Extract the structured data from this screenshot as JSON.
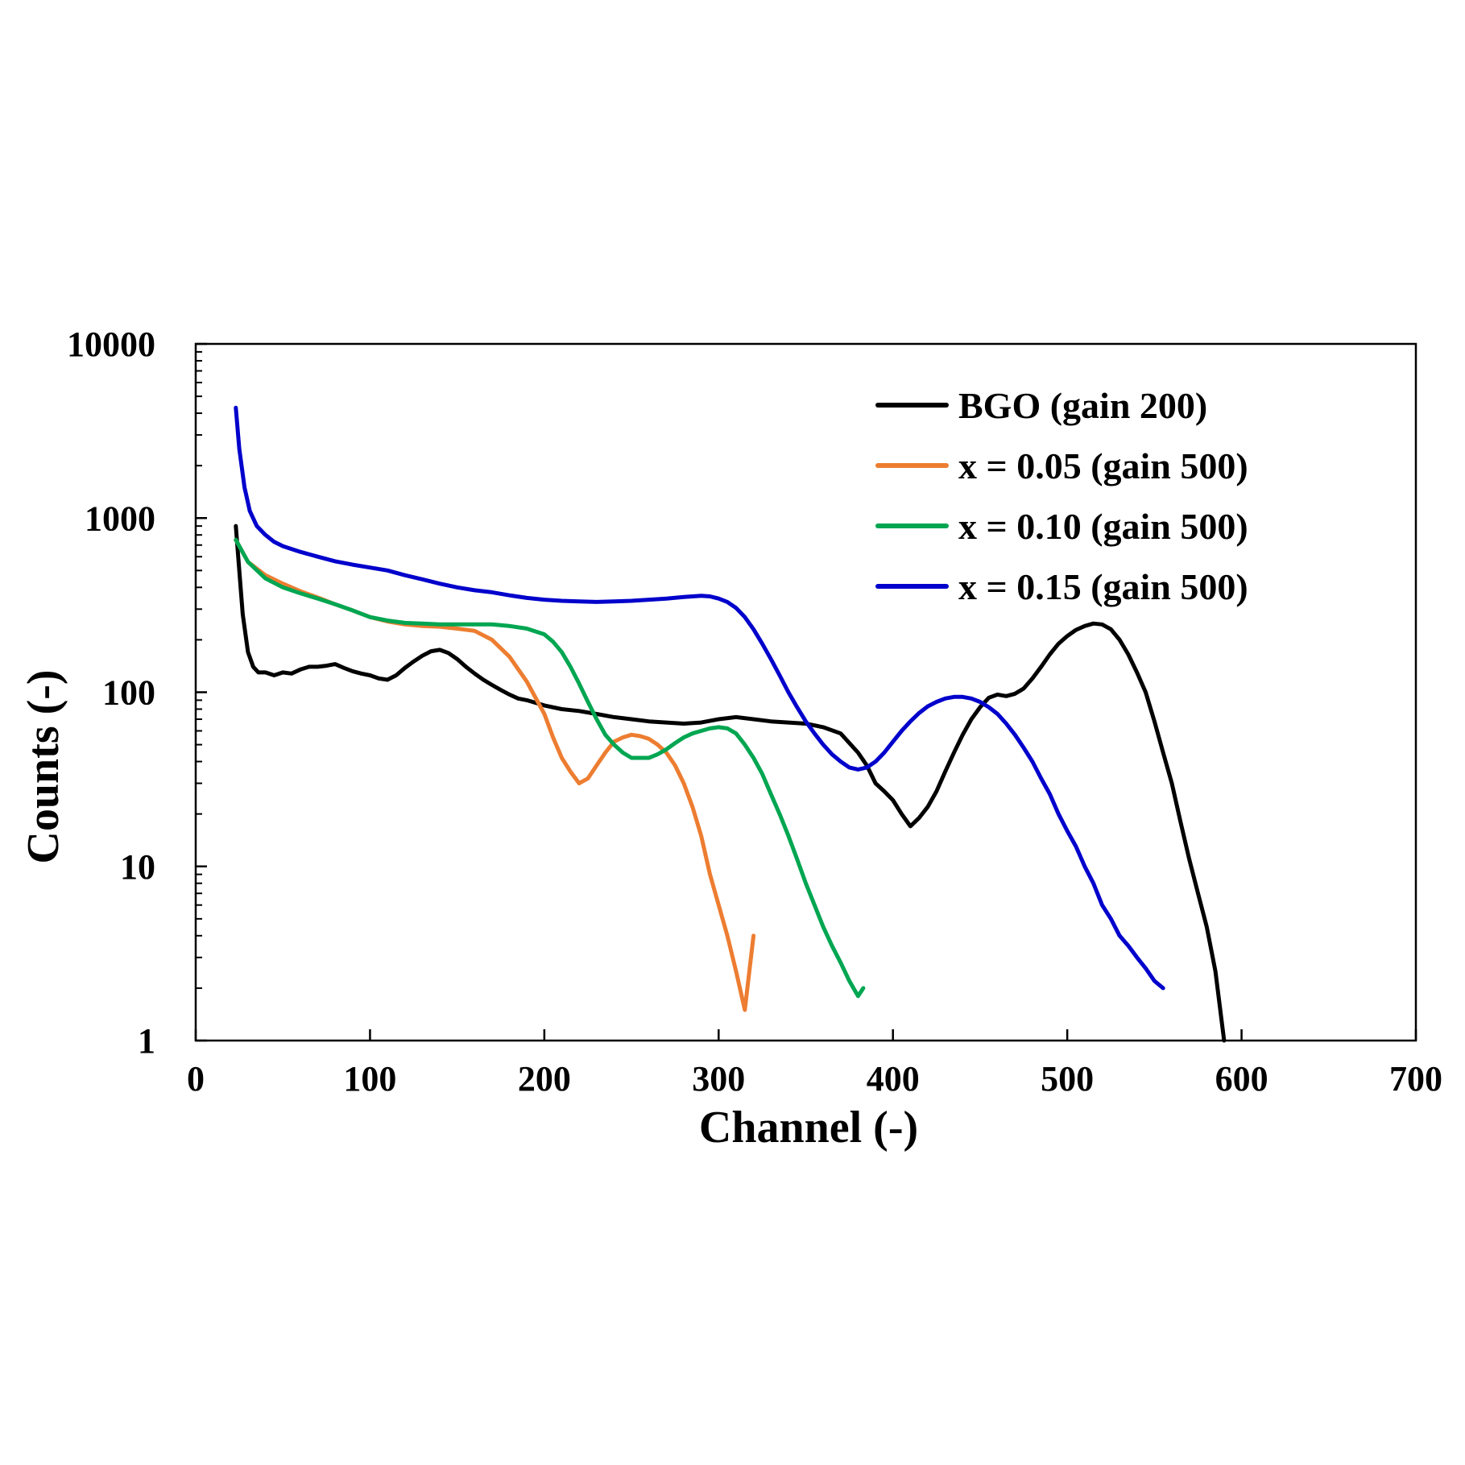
{
  "chart_data": {
    "type": "line",
    "title": "",
    "xlabel": "Channel (-)",
    "ylabel": "Counts (-)",
    "xlim": [
      0,
      700
    ],
    "ylim": [
      1,
      10000
    ],
    "yscale": "log",
    "x_ticks": [
      0,
      100,
      200,
      300,
      400,
      500,
      600,
      700
    ],
    "x_tick_labels": [
      "0",
      "100",
      "200",
      "300",
      "400",
      "500",
      "600",
      "700"
    ],
    "y_ticks": [
      1,
      10,
      100,
      1000,
      10000
    ],
    "y_tick_labels": [
      "1",
      "10",
      "100",
      "1000",
      "10000"
    ],
    "grid": false,
    "legend_position": "top-right",
    "series": [
      {
        "name": "BGO (gain 200)",
        "color": "#000000",
        "x": [
          23,
          25,
          27,
          30,
          33,
          36,
          40,
          45,
          50,
          55,
          60,
          65,
          70,
          75,
          80,
          85,
          90,
          95,
          100,
          105,
          110,
          115,
          120,
          125,
          130,
          135,
          140,
          145,
          150,
          155,
          160,
          165,
          170,
          175,
          180,
          185,
          190,
          195,
          200,
          210,
          220,
          230,
          240,
          250,
          260,
          270,
          280,
          290,
          300,
          310,
          320,
          330,
          340,
          350,
          360,
          370,
          380,
          385,
          390,
          395,
          400,
          405,
          410,
          415,
          420,
          425,
          430,
          435,
          440,
          445,
          450,
          455,
          460,
          465,
          470,
          475,
          480,
          485,
          490,
          495,
          500,
          505,
          510,
          515,
          520,
          525,
          530,
          535,
          540,
          545,
          550,
          555,
          560,
          565,
          570,
          575,
          580,
          585,
          590
        ],
        "y": [
          900,
          500,
          280,
          170,
          140,
          130,
          130,
          125,
          130,
          128,
          135,
          140,
          140,
          142,
          145,
          138,
          132,
          128,
          125,
          120,
          118,
          125,
          138,
          150,
          162,
          172,
          175,
          168,
          155,
          140,
          128,
          118,
          110,
          103,
          97,
          92,
          90,
          87,
          84,
          80,
          78,
          75,
          72,
          70,
          68,
          67,
          66,
          67,
          70,
          72,
          70,
          68,
          67,
          66,
          63,
          58,
          45,
          38,
          30,
          27,
          24,
          20,
          17,
          19,
          22,
          27,
          35,
          45,
          57,
          70,
          82,
          93,
          97,
          95,
          98,
          105,
          120,
          140,
          165,
          190,
          210,
          228,
          240,
          248,
          245,
          230,
          200,
          165,
          130,
          100,
          68,
          45,
          30,
          18,
          11,
          7,
          4.5,
          2.5,
          1
        ]
      },
      {
        "name": "x = 0.05 (gain 500)",
        "color": "#ED7D31",
        "x": [
          23,
          30,
          40,
          50,
          60,
          70,
          80,
          90,
          100,
          110,
          120,
          130,
          140,
          150,
          160,
          170,
          180,
          190,
          200,
          205,
          210,
          215,
          220,
          225,
          230,
          235,
          240,
          245,
          250,
          255,
          260,
          265,
          270,
          275,
          280,
          285,
          290,
          295,
          300,
          305,
          310,
          315,
          320
        ],
        "y": [
          750,
          560,
          470,
          420,
          380,
          350,
          320,
          295,
          270,
          255,
          245,
          240,
          238,
          232,
          225,
          200,
          160,
          115,
          75,
          55,
          42,
          35,
          30,
          32,
          38,
          45,
          52,
          55,
          57,
          56,
          54,
          50,
          45,
          38,
          30,
          22,
          15,
          9,
          6,
          4,
          2.5,
          1.5,
          4
        ]
      },
      {
        "name": "x = 0.10 (gain 500)",
        "color": "#00A651",
        "x": [
          23,
          30,
          40,
          50,
          60,
          70,
          80,
          90,
          100,
          110,
          120,
          130,
          140,
          150,
          160,
          170,
          180,
          190,
          200,
          205,
          210,
          215,
          220,
          225,
          230,
          235,
          240,
          245,
          250,
          255,
          260,
          265,
          270,
          275,
          280,
          285,
          290,
          295,
          300,
          305,
          310,
          315,
          320,
          325,
          330,
          335,
          340,
          345,
          350,
          355,
          360,
          365,
          370,
          375,
          380,
          383
        ],
        "y": [
          750,
          560,
          450,
          400,
          370,
          345,
          320,
          295,
          270,
          258,
          250,
          248,
          245,
          245,
          245,
          245,
          240,
          232,
          215,
          195,
          170,
          140,
          112,
          88,
          70,
          57,
          50,
          45,
          42,
          42,
          42,
          44,
          47,
          51,
          55,
          58,
          60,
          62,
          63,
          62,
          58,
          50,
          42,
          34,
          26,
          20,
          15,
          11,
          8,
          6,
          4.5,
          3.5,
          2.8,
          2.2,
          1.8,
          2
        ]
      },
      {
        "name": "x = 0.15 (gain 500)",
        "color": "#0000CC",
        "x": [
          23,
          25,
          28,
          31,
          35,
          40,
          45,
          50,
          60,
          70,
          80,
          90,
          100,
          110,
          120,
          130,
          140,
          150,
          160,
          170,
          180,
          190,
          200,
          210,
          220,
          230,
          240,
          250,
          260,
          270,
          280,
          290,
          295,
          300,
          305,
          310,
          315,
          320,
          325,
          330,
          335,
          340,
          345,
          350,
          355,
          360,
          365,
          370,
          375,
          380,
          385,
          390,
          395,
          400,
          405,
          410,
          415,
          420,
          425,
          430,
          435,
          440,
          445,
          450,
          455,
          460,
          465,
          470,
          475,
          480,
          485,
          490,
          495,
          500,
          505,
          510,
          515,
          520,
          525,
          530,
          535,
          540,
          545,
          550,
          555
        ],
        "y": [
          4300,
          2500,
          1500,
          1100,
          900,
          800,
          730,
          690,
          640,
          600,
          565,
          540,
          520,
          500,
          470,
          445,
          420,
          400,
          385,
          375,
          360,
          348,
          340,
          335,
          332,
          330,
          332,
          335,
          340,
          345,
          352,
          358,
          355,
          345,
          330,
          305,
          270,
          230,
          190,
          155,
          125,
          100,
          82,
          68,
          58,
          50,
          44,
          40,
          37,
          36,
          37,
          40,
          45,
          52,
          60,
          68,
          76,
          83,
          88,
          92,
          94,
          94,
          92,
          88,
          82,
          75,
          66,
          57,
          48,
          40,
          32,
          26,
          20,
          16,
          13,
          10,
          8,
          6,
          5,
          4,
          3.5,
          3,
          2.6,
          2.2,
          2
        ]
      }
    ]
  }
}
